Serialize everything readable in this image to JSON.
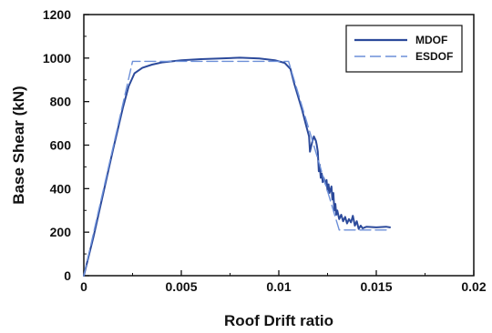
{
  "chart_data": {
    "type": "line",
    "xlabel": "Roof Drift ratio",
    "ylabel": "Base Shear (kN)",
    "xlim": [
      0,
      0.02
    ],
    "ylim": [
      0,
      1200
    ],
    "xticks": [
      0,
      0.005,
      0.01,
      0.015,
      0.02
    ],
    "xtick_labels": [
      "0",
      "0.005",
      "0.01",
      "0.015",
      "0.02"
    ],
    "yticks": [
      0,
      200,
      400,
      600,
      800,
      1000,
      1200
    ],
    "ytick_labels": [
      "0",
      "200",
      "400",
      "600",
      "800",
      "1000",
      "1200"
    ],
    "grid": false,
    "legend_position": "top-right",
    "series": [
      {
        "name": "MDOF",
        "style": "solid",
        "color": "#2c4a9b",
        "x": [
          0,
          0.0005,
          0.001,
          0.0015,
          0.002,
          0.0023,
          0.0026,
          0.003,
          0.0035,
          0.004,
          0.005,
          0.006,
          0.007,
          0.008,
          0.009,
          0.0098,
          0.0103,
          0.0106,
          0.0108,
          0.011,
          0.0112,
          0.0114,
          0.01155,
          0.0116,
          0.0117,
          0.0118,
          0.0119,
          0.01195,
          0.012,
          0.01205,
          0.0121,
          0.01215,
          0.0122,
          0.01225,
          0.0123,
          0.0124,
          0.01245,
          0.0125,
          0.01255,
          0.0126,
          0.0127,
          0.01275,
          0.0128,
          0.01285,
          0.0129,
          0.01295,
          0.013,
          0.0131,
          0.0132,
          0.0133,
          0.0134,
          0.0135,
          0.0136,
          0.0137,
          0.0138,
          0.0139,
          0.014,
          0.0141,
          0.0142,
          0.0143,
          0.0145,
          0.015,
          0.0155,
          0.0157
        ],
        "y": [
          0,
          180,
          380,
          580,
          770,
          870,
          930,
          955,
          970,
          980,
          990,
          995,
          998,
          1002,
          998,
          990,
          978,
          950,
          880,
          820,
          760,
          690,
          640,
          570,
          610,
          640,
          620,
          600,
          570,
          480,
          510,
          450,
          470,
          430,
          450,
          420,
          440,
          390,
          420,
          380,
          410,
          350,
          380,
          300,
          330,
          280,
          300,
          260,
          280,
          250,
          270,
          240,
          260,
          245,
          275,
          230,
          250,
          215,
          230,
          218,
          225,
          222,
          225,
          222
        ],
        "legend_label": "MDOF"
      },
      {
        "name": "ESDOF",
        "style": "dashed",
        "color": "#6c8fd8",
        "x": [
          0,
          0.0025,
          0.0105,
          0.0131,
          0.0157
        ],
        "y": [
          0,
          985,
          985,
          210,
          210
        ],
        "legend_label": "ESDOF"
      }
    ]
  }
}
